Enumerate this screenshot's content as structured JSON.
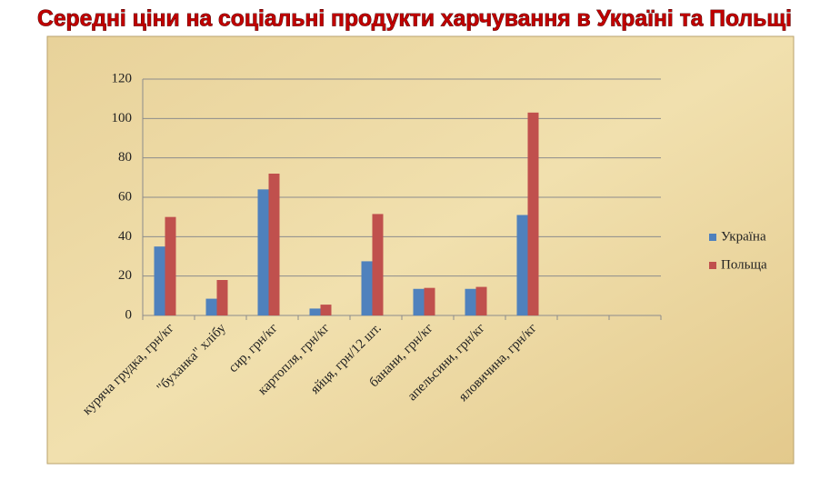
{
  "chart_data": {
    "type": "bar",
    "title": "Середні ціни на соціальні продукти харчування в Україні та Польщі",
    "categories": [
      "куряча грудка, грн/кг",
      "\"буханка\" хлібу",
      "сир, грн/кг",
      "картопля, грн/кг",
      "яйця, грн/12 шт.",
      "банани, грн/кг",
      "апельсини, грн/кг",
      "яловичина, грн/кг",
      null,
      null
    ],
    "series": [
      {
        "name": "Україна",
        "color": "#4f81bd",
        "values": [
          35,
          8.5,
          64,
          3.5,
          27.5,
          13.5,
          13.5,
          51,
          null,
          null
        ]
      },
      {
        "name": "Польща",
        "color": "#c0504d",
        "values": [
          50,
          18,
          72,
          5.5,
          51.5,
          14,
          14.5,
          103,
          null,
          null
        ]
      }
    ],
    "ylim": [
      0,
      120
    ],
    "yticks": [
      0,
      20,
      40,
      60,
      80,
      100,
      120
    ],
    "grid": true,
    "legend": "right"
  }
}
